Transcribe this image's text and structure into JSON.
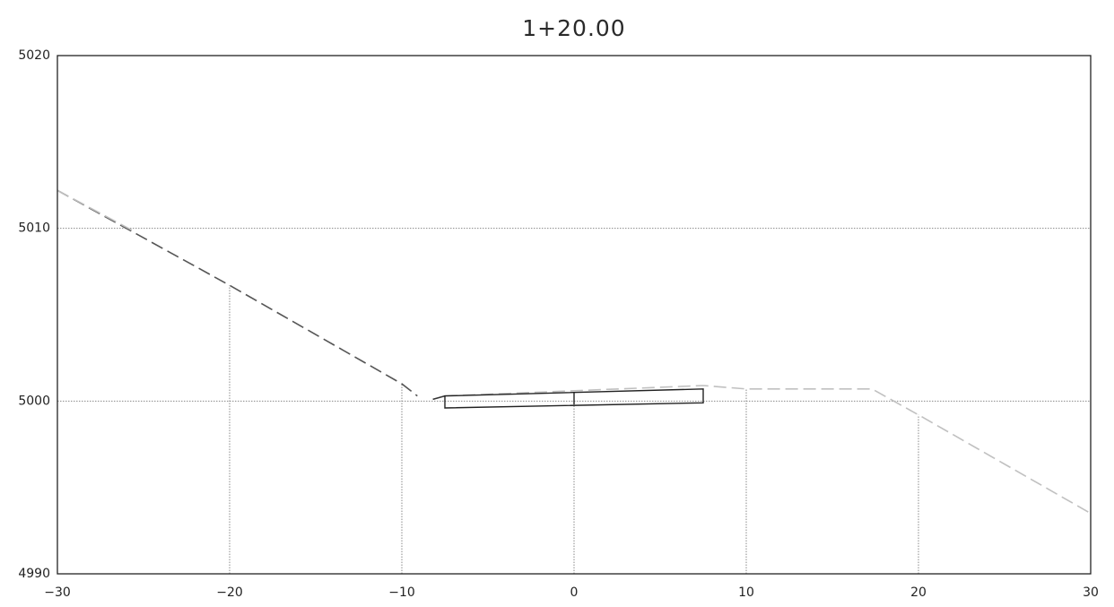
{
  "chart_data": {
    "type": "line",
    "title": "1+20.00",
    "xlabel": "",
    "ylabel": "",
    "xlim": [
      -30,
      30
    ],
    "ylim": [
      4990,
      5020
    ],
    "x_ticks": [
      -30,
      -20,
      -10,
      0,
      10,
      20,
      30
    ],
    "x_tick_labels": [
      "−30",
      "−20",
      "−10",
      "0",
      "10",
      "20",
      "30"
    ],
    "y_ticks": [
      4990,
      5000,
      5010,
      5020
    ],
    "y_tick_labels": [
      "4990",
      "5000",
      "5010",
      "5020"
    ],
    "grid": {
      "horizontal": [
        5000,
        5010
      ],
      "vertical_to_ground": [
        -20,
        -10,
        0,
        10,
        20
      ]
    },
    "series": [
      {
        "style": "dashed",
        "color": "#555555",
        "points": [
          [
            -30,
            5012.2
          ],
          [
            -20,
            5006.7
          ],
          [
            -10,
            5001.0
          ],
          [
            -9.1,
            5000.3
          ]
        ]
      },
      {
        "style": "dashed",
        "color": "#c0c0c0",
        "points": [
          [
            -30,
            5012.2
          ],
          [
            -25.5,
            5009.8
          ]
        ]
      },
      {
        "style": "dashed",
        "color": "#c0c0c0",
        "points": [
          [
            -7.5,
            5000.3
          ],
          [
            0,
            5000.6
          ],
          [
            7.5,
            5000.9
          ],
          [
            10,
            5000.7
          ],
          [
            17.3,
            5000.7
          ],
          [
            20,
            4999.2
          ],
          [
            30,
            4993.5
          ]
        ]
      },
      {
        "style": "solid",
        "color": "#333333",
        "points": [
          [
            -8.2,
            5000.1
          ],
          [
            -7.5,
            5000.3
          ]
        ]
      }
    ],
    "template": {
      "outline": [
        [
          -7.5,
          5000.3
        ],
        [
          7.5,
          5000.7
        ],
        [
          7.5,
          4999.9
        ],
        [
          -7.5,
          4999.6
        ]
      ],
      "centerline": [
        [
          0,
          5000.5
        ],
        [
          0,
          4999.8
        ]
      ],
      "color": "#222222"
    }
  }
}
